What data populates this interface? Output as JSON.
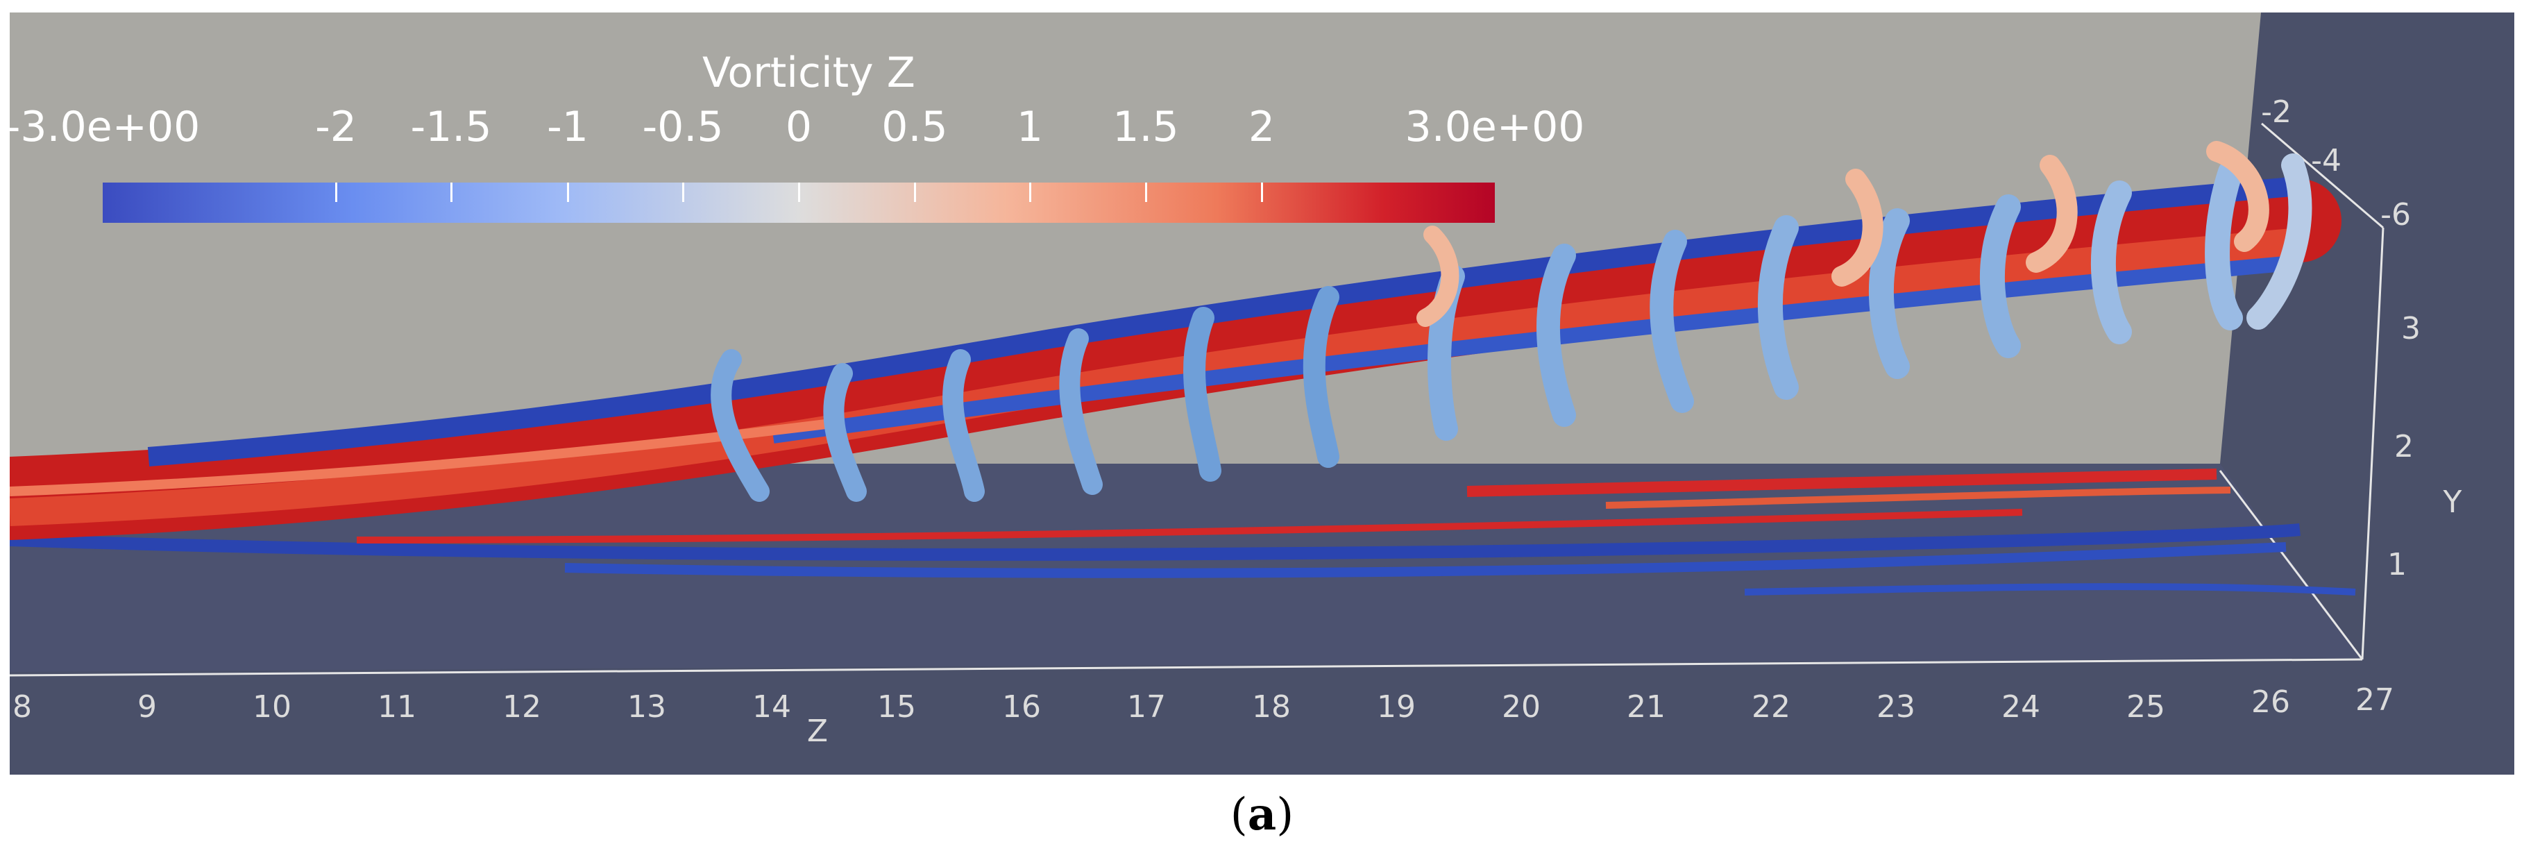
{
  "colorbar": {
    "title": "Vorticity Z",
    "ticks": [
      "-3.0e+00",
      "-2",
      "-1.5",
      "-1",
      "-0.5",
      "0",
      "0.5",
      "1",
      "1.5",
      "2",
      "3.0e+00"
    ]
  },
  "axes": {
    "z_ticks": [
      "8",
      "9",
      "10",
      "11",
      "12",
      "13",
      "14",
      "15",
      "16",
      "17",
      "18",
      "19",
      "20",
      "21",
      "22",
      "23",
      "24",
      "25",
      "26",
      "27"
    ],
    "z_label": "Z",
    "y_ticks": [
      "1",
      "2",
      "3"
    ],
    "y_label": "Y",
    "x_ticks": [
      "-2",
      "-4",
      "-6"
    ]
  },
  "caption": {
    "open": "(",
    "letter": "a",
    "close": ")"
  },
  "colors": {
    "background": "#4a5069",
    "wall": "#a9a8a3",
    "negative": "#3056c8",
    "positive": "#d42828",
    "neutral": "#8fb6e3"
  }
}
